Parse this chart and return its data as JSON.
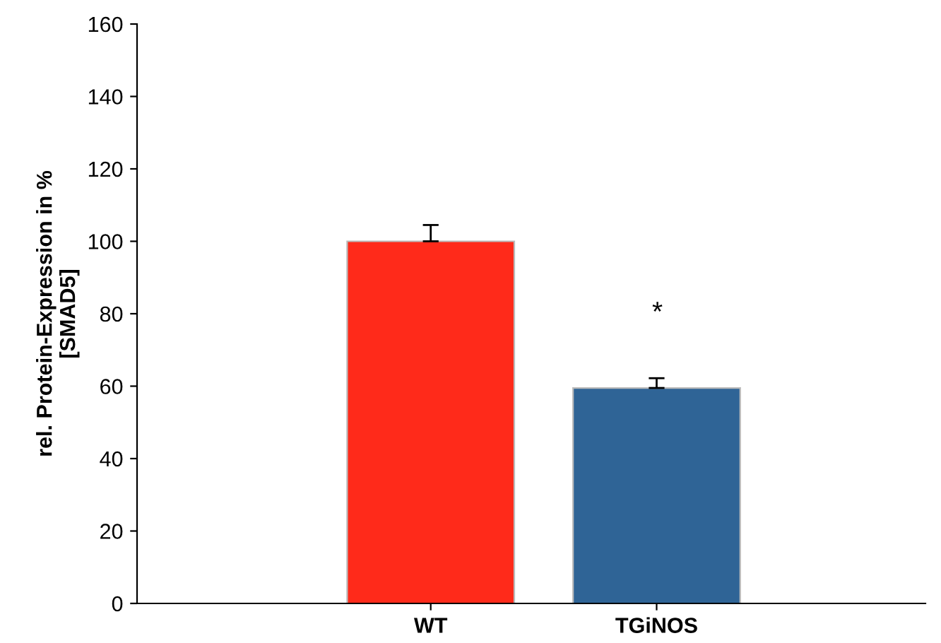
{
  "chart_data": {
    "type": "bar",
    "ylabel": "rel. Protein-Expression in %\n[SMAD5]",
    "categories": [
      "WT",
      "TGiNOS"
    ],
    "values": [
      100,
      59.5
    ],
    "colors": [
      "#ff2a1a",
      "#2f6496"
    ],
    "errors": [
      [
        100,
        104.5
      ],
      [
        59.5,
        62.2
      ]
    ],
    "ylim": [
      0,
      160
    ],
    "yticks": [
      0,
      20,
      40,
      60,
      80,
      100,
      120,
      140,
      160
    ],
    "annotations": [
      "*"
    ],
    "grid": false,
    "legend": false
  }
}
